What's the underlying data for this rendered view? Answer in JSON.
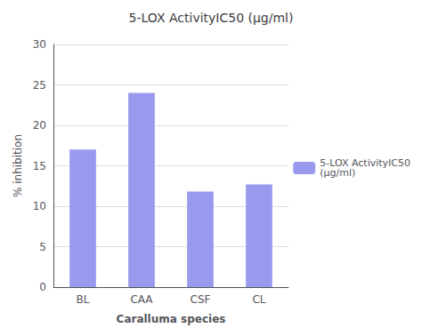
{
  "chart_data": {
    "type": "bar",
    "title": "5-LOX ActivityIC50 (μg/ml)",
    "xlabel": "Caralluma species",
    "ylabel": "% inhibition",
    "categories": [
      "BL",
      "CAA",
      "CSF",
      "CL"
    ],
    "series": [
      {
        "name": "5-LOX ActivityIC50\n(μg/ml)",
        "color": "#9999ee",
        "values": [
          17,
          24,
          11.8,
          12.7
        ]
      }
    ],
    "ylim": [
      0,
      30
    ],
    "yticks": [
      0,
      5,
      10,
      15,
      20,
      25,
      30
    ],
    "grid": true,
    "legend": "right"
  }
}
